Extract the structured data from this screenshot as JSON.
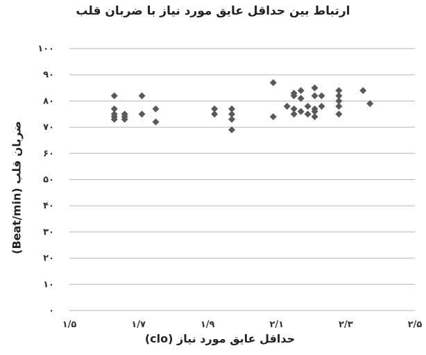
{
  "chart_data": {
    "type": "scatter",
    "title": "ارتباط بین حداقل عایق مورد نیاز با ضربان قلب",
    "xlabel": "حداقل عایق مورد نیاز (clo)",
    "ylabel": "ضربان قلب (Beat/min)",
    "xlim": [
      1.5,
      2.5
    ],
    "ylim": [
      0,
      100
    ],
    "grid": "horizontal",
    "marker_color": "#595959",
    "x_ticks": [
      {
        "value": 1.5,
        "label": "۱/۵"
      },
      {
        "value": 1.7,
        "label": "۱/۷"
      },
      {
        "value": 1.9,
        "label": "۱/۹"
      },
      {
        "value": 2.1,
        "label": "۲/۱"
      },
      {
        "value": 2.3,
        "label": "۲/۳"
      },
      {
        "value": 2.5,
        "label": "۲/۵"
      }
    ],
    "y_ticks": [
      {
        "value": 0,
        "label": "۰"
      },
      {
        "value": 10,
        "label": "۱۰"
      },
      {
        "value": 20,
        "label": "۲۰"
      },
      {
        "value": 30,
        "label": "۳۰"
      },
      {
        "value": 40,
        "label": "۴۰"
      },
      {
        "value": 50,
        "label": "۵۰"
      },
      {
        "value": 60,
        "label": "۶۰"
      },
      {
        "value": 70,
        "label": "۷۰"
      },
      {
        "value": 80,
        "label": "۸۰"
      },
      {
        "value": 90,
        "label": "۹۰"
      },
      {
        "value": 100,
        "label": "۱۰۰"
      }
    ],
    "points": [
      {
        "x": 1.63,
        "y": 82
      },
      {
        "x": 1.63,
        "y": 77
      },
      {
        "x": 1.63,
        "y": 75
      },
      {
        "x": 1.63,
        "y": 74
      },
      {
        "x": 1.63,
        "y": 73
      },
      {
        "x": 1.66,
        "y": 75
      },
      {
        "x": 1.66,
        "y": 74
      },
      {
        "x": 1.66,
        "y": 73
      },
      {
        "x": 1.71,
        "y": 82
      },
      {
        "x": 1.71,
        "y": 75
      },
      {
        "x": 1.75,
        "y": 77
      },
      {
        "x": 1.75,
        "y": 72
      },
      {
        "x": 1.92,
        "y": 77
      },
      {
        "x": 1.92,
        "y": 75
      },
      {
        "x": 1.97,
        "y": 77
      },
      {
        "x": 1.97,
        "y": 75
      },
      {
        "x": 1.97,
        "y": 73
      },
      {
        "x": 1.97,
        "y": 69
      },
      {
        "x": 2.09,
        "y": 87
      },
      {
        "x": 2.09,
        "y": 74
      },
      {
        "x": 2.13,
        "y": 78
      },
      {
        "x": 2.15,
        "y": 83
      },
      {
        "x": 2.15,
        "y": 82
      },
      {
        "x": 2.15,
        "y": 77
      },
      {
        "x": 2.15,
        "y": 75
      },
      {
        "x": 2.17,
        "y": 84
      },
      {
        "x": 2.17,
        "y": 81
      },
      {
        "x": 2.17,
        "y": 76
      },
      {
        "x": 2.19,
        "y": 78
      },
      {
        "x": 2.19,
        "y": 75
      },
      {
        "x": 2.21,
        "y": 85
      },
      {
        "x": 2.21,
        "y": 82
      },
      {
        "x": 2.21,
        "y": 77
      },
      {
        "x": 2.21,
        "y": 76
      },
      {
        "x": 2.21,
        "y": 74
      },
      {
        "x": 2.23,
        "y": 82
      },
      {
        "x": 2.23,
        "y": 78
      },
      {
        "x": 2.28,
        "y": 84
      },
      {
        "x": 2.28,
        "y": 82
      },
      {
        "x": 2.28,
        "y": 80
      },
      {
        "x": 2.28,
        "y": 78
      },
      {
        "x": 2.28,
        "y": 75
      },
      {
        "x": 2.35,
        "y": 84
      },
      {
        "x": 2.37,
        "y": 79
      }
    ]
  }
}
